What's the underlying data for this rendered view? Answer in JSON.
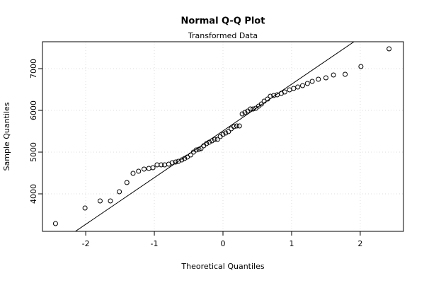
{
  "chart_data": {
    "type": "scatter",
    "title": "Normal Q-Q Plot",
    "subtitle": "Transformed Data",
    "x_label": "Theoretical Quantiles",
    "y_label": "Sample Quantiles",
    "xlim": [
      -2.63,
      2.63
    ],
    "ylim": [
      3102,
      7644
    ],
    "xticks": [
      -2,
      -1,
      0,
      1,
      2
    ],
    "yticks": [
      4000,
      5000,
      6000,
      7000
    ],
    "grid": true,
    "reference_line": {
      "intercept": 5508,
      "slope": 1119
    },
    "series": [
      {
        "color": "#000000",
        "x": [
          -2.44,
          -2.01,
          -1.79,
          -1.64,
          -1.51,
          -1.4,
          -1.31,
          -1.23,
          -1.15,
          -1.08,
          -1.02,
          -0.96,
          -0.9,
          -0.85,
          -0.79,
          -0.74,
          -0.69,
          -0.65,
          -0.6,
          -0.56,
          -0.52,
          -0.47,
          -0.43,
          -0.39,
          -0.35,
          -0.32,
          -0.28,
          -0.24,
          -0.2,
          -0.16,
          -0.12,
          -0.08,
          -0.04,
          0.0,
          0.04,
          0.08,
          0.12,
          0.16,
          0.2,
          0.24,
          0.28,
          0.32,
          0.36,
          0.4,
          0.44,
          0.48,
          0.52,
          0.56,
          0.6,
          0.65,
          0.69,
          0.74,
          0.79,
          0.85,
          0.9,
          0.97,
          1.03,
          1.09,
          1.16,
          1.23,
          1.3,
          1.39,
          1.5,
          1.61,
          1.78,
          2.01,
          2.42
        ],
        "values": [
          3288,
          3661,
          3831,
          3831,
          4051,
          4271,
          4492,
          4542,
          4593,
          4610,
          4627,
          4695,
          4695,
          4695,
          4712,
          4746,
          4763,
          4780,
          4814,
          4847,
          4881,
          4932,
          5000,
          5051,
          5068,
          5085,
          5153,
          5203,
          5237,
          5271,
          5305,
          5305,
          5373,
          5424,
          5458,
          5492,
          5559,
          5610,
          5627,
          5627,
          5915,
          5949,
          5983,
          6034,
          6034,
          6051,
          6102,
          6153,
          6220,
          6271,
          6339,
          6356,
          6373,
          6407,
          6441,
          6492,
          6525,
          6559,
          6593,
          6644,
          6695,
          6746,
          6780,
          6847,
          6864,
          7051,
          7475
        ]
      }
    ]
  }
}
